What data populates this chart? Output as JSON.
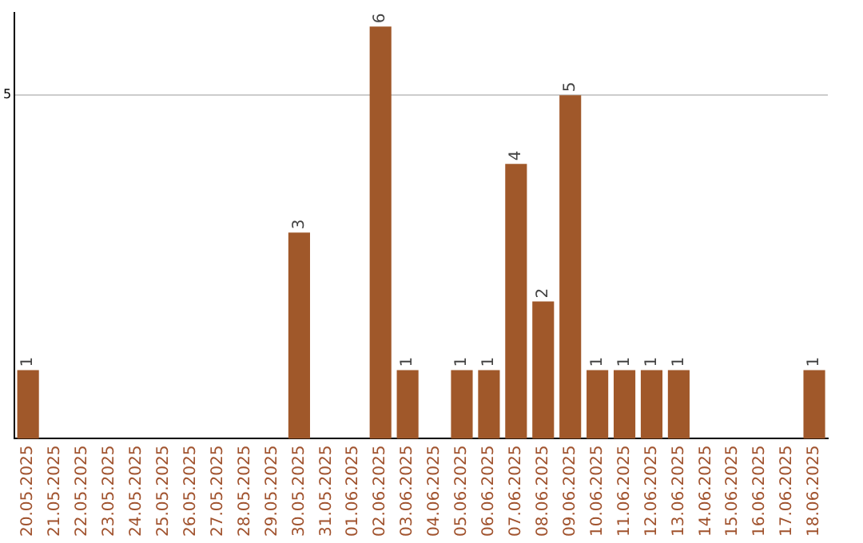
{
  "chart_data": {
    "type": "bar",
    "categories": [
      "20.05.2025",
      "21.05.2025",
      "22.05.2025",
      "23.05.2025",
      "24.05.2025",
      "25.05.2025",
      "26.05.2025",
      "27.05.2025",
      "28.05.2025",
      "29.05.2025",
      "30.05.2025",
      "31.05.2025",
      "01.06.2025",
      "02.06.2025",
      "03.06.2025",
      "04.06.2025",
      "05.06.2025",
      "06.06.2025",
      "07.06.2025",
      "08.06.2025",
      "09.06.2025",
      "10.06.2025",
      "11.06.2025",
      "12.06.2025",
      "13.06.2025",
      "14.06.2025",
      "15.06.2025",
      "16.06.2025",
      "17.06.2025",
      "18.06.2025"
    ],
    "values": [
      1,
      0,
      0,
      0,
      0,
      0,
      0,
      0,
      0,
      0,
      3,
      0,
      0,
      6,
      1,
      0,
      1,
      1,
      4,
      2,
      5,
      1,
      1,
      1,
      1,
      0,
      0,
      0,
      0,
      1
    ],
    "value_labels": [
      "1",
      null,
      null,
      null,
      null,
      null,
      null,
      null,
      null,
      null,
      "3",
      null,
      null,
      "6",
      "1",
      null,
      "1",
      "1",
      "4",
      "2",
      "5",
      "1",
      "1",
      "1",
      "1",
      null,
      null,
      null,
      null,
      "1"
    ],
    "color": "#a0582a",
    "ylim": [
      0,
      6.2
    ],
    "yticks": [
      5
    ],
    "grid": "y",
    "legend": false
  }
}
